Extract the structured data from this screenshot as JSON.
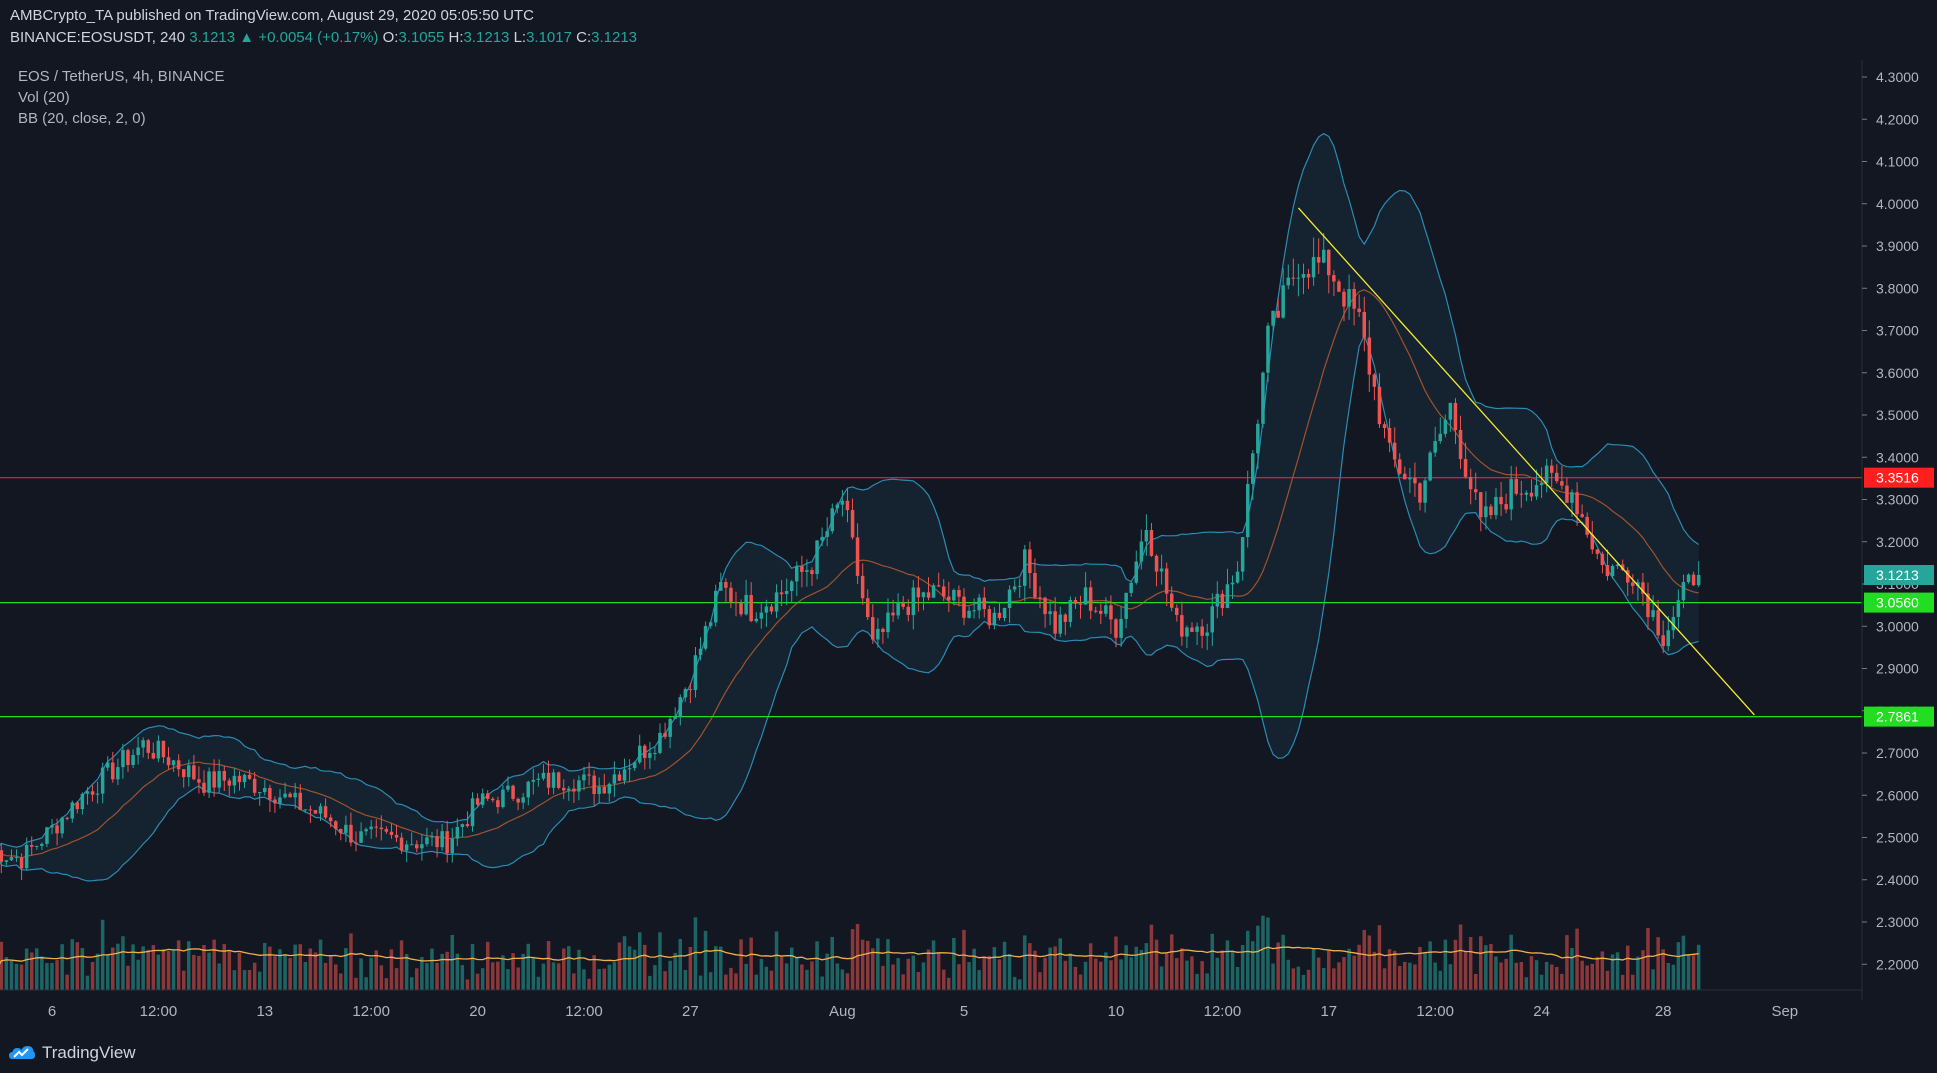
{
  "header": {
    "published_line": "AMBCrypto_TA published on TradingView.com, August 29, 2020 05:05:50 UTC",
    "symbol_line": "BINANCE:EOSUSDT, 240",
    "last": "3.1213",
    "change": "+0.0054 (+0.17%)",
    "o_label": "O:",
    "o_value": "3.1055",
    "h_label": "H:",
    "h_value": "3.1213",
    "l_label": "L:",
    "l_value": "3.1017",
    "c_label": "C:",
    "c_value": "3.1213"
  },
  "legend": {
    "pair": "EOS / TetherUS, 4h, BINANCE",
    "vol": "Vol (20)",
    "bb": "BB (20, close, 2, 0)"
  },
  "footer": {
    "brand": "TradingView"
  },
  "colors": {
    "background": "#131722",
    "up": "#26a69a",
    "down": "#ef5350",
    "resistance": "#ff1f1f",
    "support": "#22dd22",
    "trendline": "#f7ec32",
    "bb_band": "#2a8bb4",
    "bb_basis": "#a0522d",
    "vol_ma": "#f0b04a"
  },
  "chart_data": {
    "type": "candlestick",
    "title": "EOS / TetherUS, 4h, BINANCE",
    "y_axis": {
      "side": "right",
      "range": [
        2.15,
        4.33
      ],
      "ticks": [
        "4.3000",
        "4.2000",
        "4.1000",
        "4.0000",
        "3.9000",
        "3.8000",
        "3.7000",
        "3.6000",
        "3.5000",
        "3.4000",
        "3.3000",
        "3.2000",
        "3.1000",
        "3.0000",
        "2.9000",
        "2.8000",
        "2.7000",
        "2.6000",
        "2.5000",
        "2.4000",
        "2.3000",
        "2.2000"
      ]
    },
    "x_axis": {
      "ticks": [
        "6",
        "12:00",
        "13",
        "12:00",
        "20",
        "12:00",
        "27",
        "Aug",
        "5",
        "10",
        "12:00",
        "17",
        "12:00",
        "24",
        "28",
        "Sep"
      ]
    },
    "horizontal_levels": [
      {
        "value": 3.3516,
        "label": "3.3516",
        "color": "resistance"
      },
      {
        "value": 3.056,
        "label": "3.0560",
        "color": "support"
      },
      {
        "value": 2.7861,
        "label": "2.7861",
        "color": "support"
      }
    ],
    "last_price": {
      "value": 3.1213,
      "label": "3.1213"
    },
    "trendline": {
      "from_date": "2020-08-16",
      "from_value": 3.99,
      "to_date": "2020-08-31",
      "to_value": 2.79
    },
    "close_path": [
      {
        "d": "2020-07-04",
        "v": 2.47
      },
      {
        "d": "2020-07-05",
        "v": 2.45
      },
      {
        "d": "2020-07-06",
        "v": 2.52
      },
      {
        "d": "2020-07-07",
        "v": 2.6
      },
      {
        "d": "2020-07-08",
        "v": 2.66
      },
      {
        "d": "2020-07-09",
        "v": 2.72
      },
      {
        "d": "2020-07-10",
        "v": 2.68
      },
      {
        "d": "2020-07-11",
        "v": 2.63
      },
      {
        "d": "2020-07-12",
        "v": 2.64
      },
      {
        "d": "2020-07-13",
        "v": 2.62
      },
      {
        "d": "2020-07-14",
        "v": 2.58
      },
      {
        "d": "2020-07-15",
        "v": 2.55
      },
      {
        "d": "2020-07-16",
        "v": 2.5
      },
      {
        "d": "2020-07-17",
        "v": 2.5
      },
      {
        "d": "2020-07-18",
        "v": 2.49
      },
      {
        "d": "2020-07-19",
        "v": 2.49
      },
      {
        "d": "2020-07-20",
        "v": 2.58
      },
      {
        "d": "2020-07-21",
        "v": 2.6
      },
      {
        "d": "2020-07-22",
        "v": 2.63
      },
      {
        "d": "2020-07-23",
        "v": 2.64
      },
      {
        "d": "2020-07-24",
        "v": 2.62
      },
      {
        "d": "2020-07-25",
        "v": 2.68
      },
      {
        "d": "2020-07-26",
        "v": 2.74
      },
      {
        "d": "2020-07-27",
        "v": 2.88
      },
      {
        "d": "2020-07-28",
        "v": 3.09
      },
      {
        "d": "2020-07-29",
        "v": 3.04
      },
      {
        "d": "2020-07-30",
        "v": 3.08
      },
      {
        "d": "2020-07-31",
        "v": 3.15
      },
      {
        "d": "2020-08-01",
        "v": 3.3
      },
      {
        "d": "2020-08-02",
        "v": 2.95
      },
      {
        "d": "2020-08-03",
        "v": 3.05
      },
      {
        "d": "2020-08-04",
        "v": 3.08
      },
      {
        "d": "2020-08-05",
        "v": 3.05
      },
      {
        "d": "2020-08-06",
        "v": 3.02
      },
      {
        "d": "2020-08-07",
        "v": 3.15
      },
      {
        "d": "2020-08-08",
        "v": 3.0
      },
      {
        "d": "2020-08-09",
        "v": 3.07
      },
      {
        "d": "2020-08-10",
        "v": 3.0
      },
      {
        "d": "2020-08-11",
        "v": 3.24
      },
      {
        "d": "2020-08-12",
        "v": 3.0
      },
      {
        "d": "2020-08-13",
        "v": 3.01
      },
      {
        "d": "2020-08-14",
        "v": 3.14
      },
      {
        "d": "2020-08-15",
        "v": 3.68
      },
      {
        "d": "2020-08-16",
        "v": 3.86
      },
      {
        "d": "2020-08-17",
        "v": 3.85
      },
      {
        "d": "2020-08-18",
        "v": 3.72
      },
      {
        "d": "2020-08-19",
        "v": 3.4
      },
      {
        "d": "2020-08-20",
        "v": 3.32
      },
      {
        "d": "2020-08-21",
        "v": 3.52
      },
      {
        "d": "2020-08-22",
        "v": 3.24
      },
      {
        "d": "2020-08-23",
        "v": 3.32
      },
      {
        "d": "2020-08-24",
        "v": 3.35
      },
      {
        "d": "2020-08-25",
        "v": 3.32
      },
      {
        "d": "2020-08-26",
        "v": 3.14
      },
      {
        "d": "2020-08-27",
        "v": 3.13
      },
      {
        "d": "2020-08-28",
        "v": 2.98
      },
      {
        "d": "2020-08-29",
        "v": 3.12
      }
    ]
  }
}
